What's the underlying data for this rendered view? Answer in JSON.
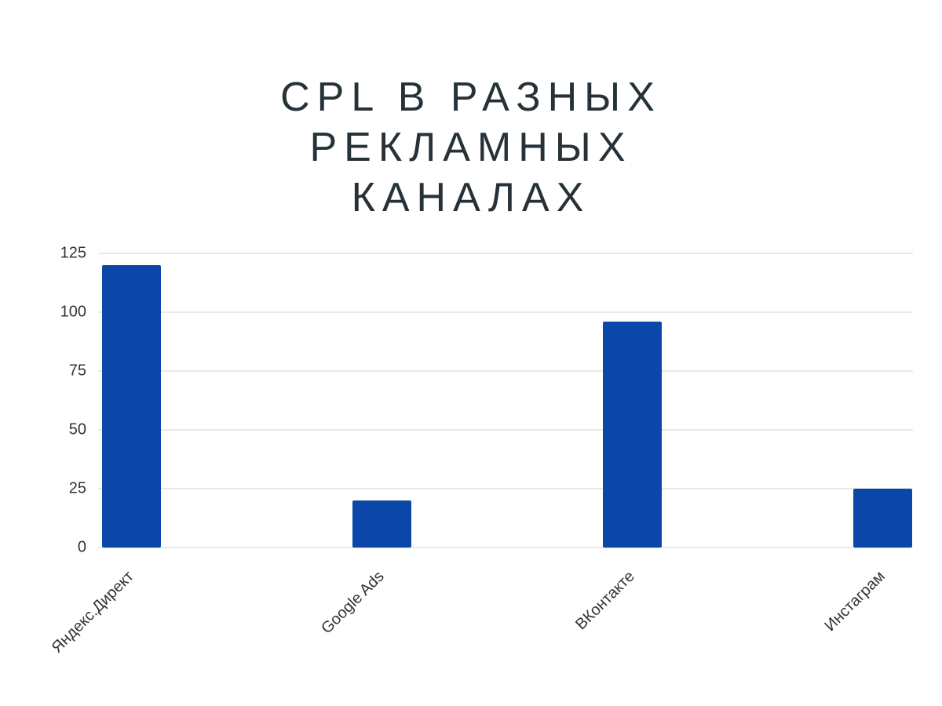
{
  "chart_data": {
    "type": "bar",
    "title": "CPL В РАЗНЫХ РЕКЛАМНЫХ КАНАЛАХ",
    "categories": [
      "Яндекс.Директ",
      "Google Ads",
      "ВКонтакте",
      "Инстаграм"
    ],
    "values": [
      120,
      20,
      96,
      25
    ],
    "color": "#0b47a8",
    "ylim": [
      0,
      125
    ],
    "yticks": [
      0,
      25,
      50,
      75,
      100,
      125
    ],
    "grid": true
  }
}
